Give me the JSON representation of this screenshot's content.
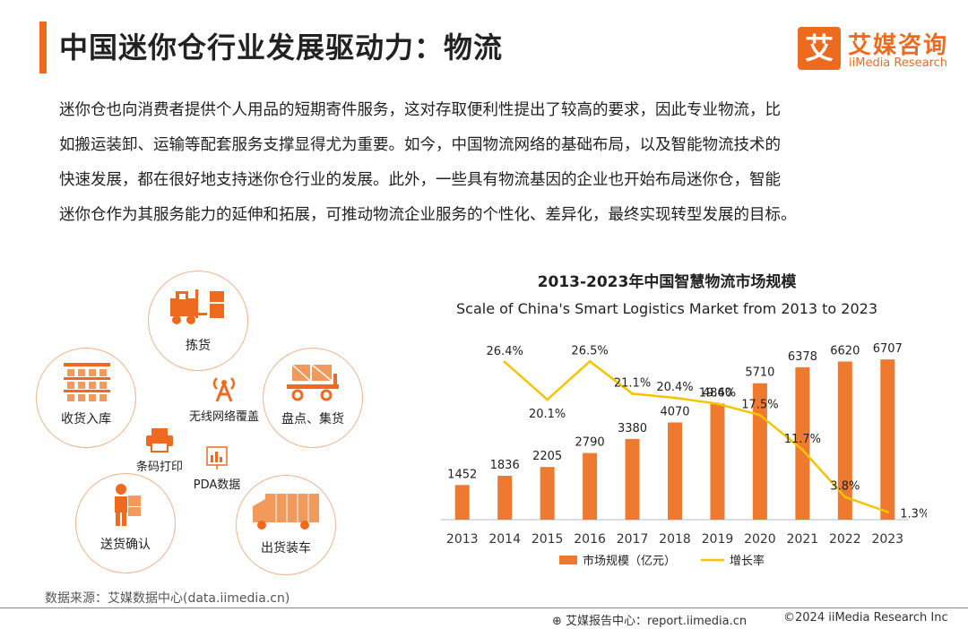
{
  "header": {
    "title": "中国迷你仓行业发展驱动力：物流",
    "logo_glyph": "艾",
    "logo_cn": "艾媒咨询",
    "logo_en": "iiMedia Research"
  },
  "intro": {
    "lines": [
      "迷你仓也向消费者提供个人用品的短期寄件服务，这对存取便利性提出了较高的要求，因此专业物流，比",
      "如搬运装卸、运输等配套服务支撑显得尤为重要。如今，中国物流网络的基础布局，以及智能物流技术的",
      "快速发展，都在很好地支持迷你仓行业的发展。此外，一些具有物流基因的企业也开始布局迷你仓，智能",
      "迷你仓作为其服务能力的延伸和拓展，可推动物流企业服务的个性化、差异化，最终实现转型发展的目标。"
    ]
  },
  "diagram": {
    "circles": {
      "picking": "拣货",
      "receiving": "收货入库",
      "inventory": "盘点、集货",
      "delivery_confirm": "送货确认",
      "shipping": "出货装车"
    },
    "center": {
      "wireless": "无线网络覆盖",
      "barcode": "条码打印",
      "pda": "PDA数据"
    }
  },
  "chart_data": {
    "type": "bar+line",
    "title": "2013-2023年中国智慧物流市场规模",
    "subtitle": "Scale of China's Smart Logistics Market from 2013 to 2023",
    "categories": [
      "2013",
      "2014",
      "2015",
      "2016",
      "2017",
      "2018",
      "2019",
      "2020",
      "2021",
      "2022",
      "2023"
    ],
    "series": [
      {
        "name": "市场规模（亿元）",
        "type": "bar",
        "color": "#ee7a2f",
        "values": [
          1452,
          1836,
          2205,
          2790,
          3380,
          4070,
          4860,
          5710,
          6378,
          6620,
          6707
        ]
      },
      {
        "name": "增长率",
        "type": "line",
        "color": "#f5c400",
        "values": [
          null,
          26.4,
          20.1,
          26.5,
          21.1,
          20.4,
          19.4,
          17.5,
          11.7,
          3.8,
          1.3
        ],
        "labels": [
          "",
          "26.4%",
          "20.1%",
          "26.5%",
          "21.1%",
          "20.4%",
          "19.4%",
          "17.5%",
          "11.7%",
          "3.8%",
          "1.3%"
        ]
      }
    ],
    "ylim_bar": [
      0,
      7500
    ],
    "ylim_line": [
      0,
      30
    ],
    "legend_position": "bottom-center"
  },
  "footer": {
    "source": "数据来源：艾媒数据中心(data.iimedia.cn)",
    "site": "艾媒报告中心：report.iimedia.cn",
    "copyright": "©2024  iiMedia Research  Inc"
  }
}
